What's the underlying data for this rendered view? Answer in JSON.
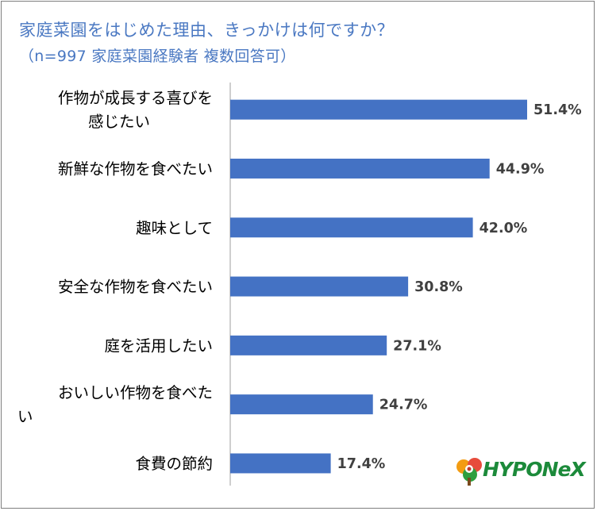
{
  "chart_data": {
    "type": "bar",
    "orientation": "horizontal",
    "title": "家庭菜園をはじめた理由、きっかけは何ですか？",
    "subtitle": "（n=997 家庭菜園経験者 複数回答可）",
    "categories": [
      [
        "作物が成長する喜びを",
        "感じたい"
      ],
      [
        "新鮮な作物を食べたい"
      ],
      [
        "趣味として"
      ],
      [
        "安全な作物を食べたい"
      ],
      [
        "庭を活用したい"
      ],
      [
        "おいしい作物を食べた",
        "い"
      ],
      [
        "食費の節約"
      ]
    ],
    "values": [
      51.4,
      44.9,
      42.0,
      30.8,
      27.1,
      24.7,
      17.4
    ],
    "value_labels": [
      "51.4%",
      "44.9%",
      "42.0%",
      "30.8%",
      "27.1%",
      "24.7%",
      "17.4%"
    ],
    "unit": "%",
    "xlim": [
      0,
      51.4
    ],
    "grid": false,
    "legend": "none",
    "bar_color": "#4472c4"
  },
  "logo": {
    "text": "HYPONeX",
    "icon": "flower-logo-icon",
    "color": "#1c8a3a"
  }
}
